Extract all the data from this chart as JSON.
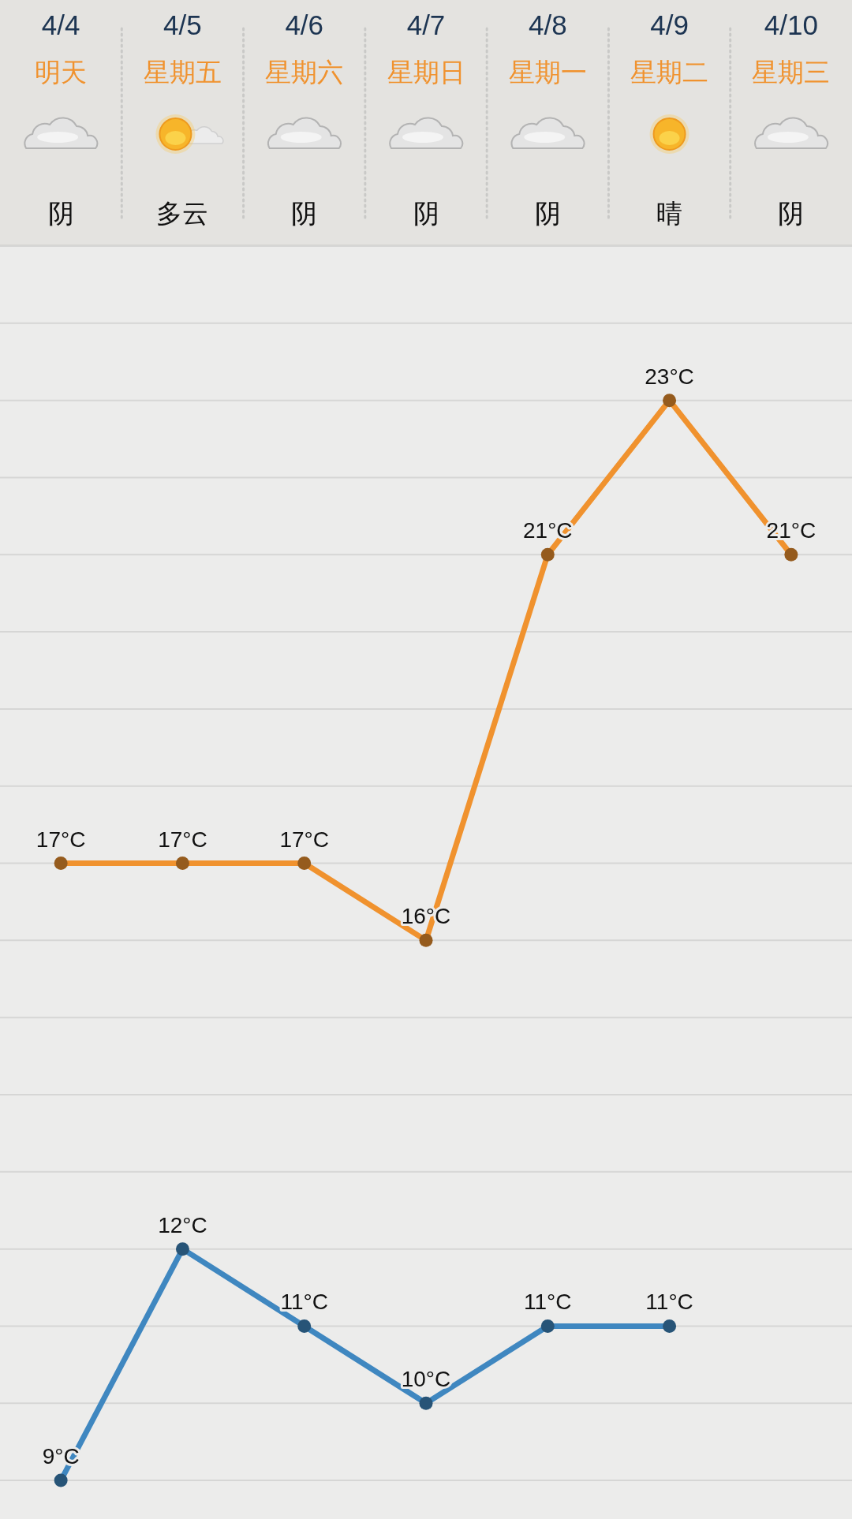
{
  "chart_data": {
    "type": "line",
    "categories": [
      "4/4\n明天",
      "4/5\n星期五",
      "4/6\n星期六",
      "4/7\n星期日",
      "4/8\n星期一",
      "4/9\n星期二",
      "4/10\n星期三"
    ],
    "annotations": [
      "阴",
      "多云",
      "阴",
      "阴",
      "阴",
      "晴",
      "阴"
    ],
    "series": [
      {
        "color": "#f0922e",
        "values": [
          17,
          17,
          17,
          16,
          21,
          23,
          21
        ],
        "value_labels": [
          "17°C",
          "17°C",
          "17°C",
          "16°C",
          "21°C",
          "23°C",
          "21°C"
        ]
      },
      {
        "color": "#3f87c0",
        "values": [
          9,
          12,
          11,
          10,
          11,
          11,
          null
        ],
        "value_labels": [
          "9°C",
          "12°C",
          "11°C",
          "10°C",
          "11°C",
          "11°C",
          null
        ]
      }
    ],
    "ylim": [
      8.5,
      25
    ],
    "tick_labels": "x",
    "grid": "y",
    "marker": "circle",
    "line_style": "solid"
  }
}
